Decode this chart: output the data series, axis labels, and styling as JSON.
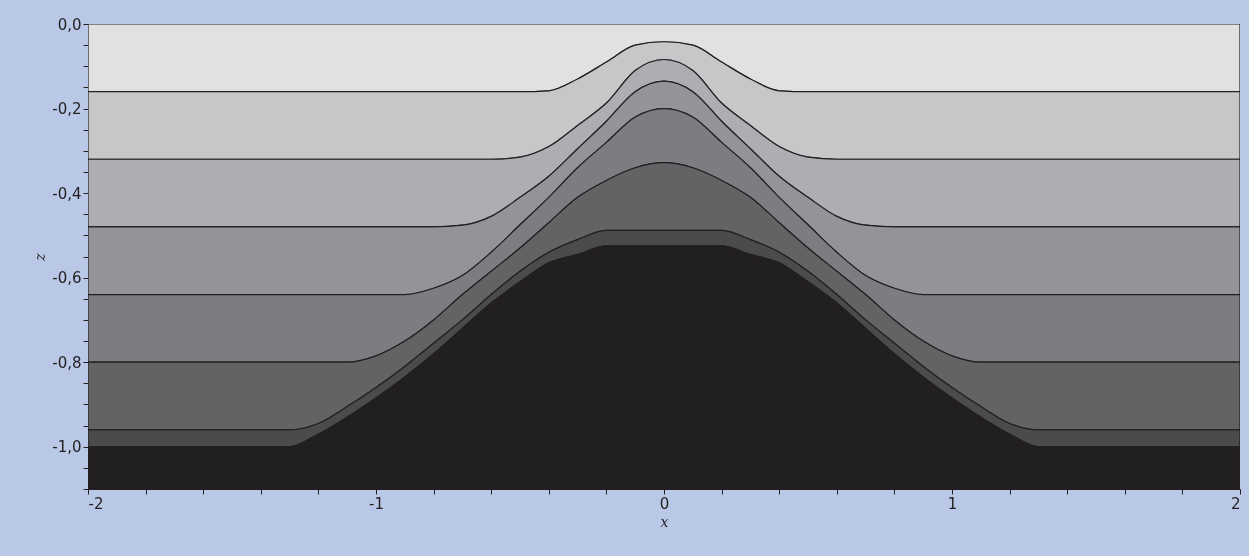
{
  "chart_data": {
    "type": "area",
    "stacked": true,
    "xlabel": "x",
    "ylabel": "z",
    "xlim": [
      -2,
      2
    ],
    "ylim": [
      -1.1,
      0
    ],
    "xticks": [
      -2,
      {
        "value": -1.8,
        "label": null
      },
      {
        "value": -1.6,
        "label": null
      },
      {
        "value": -1.4,
        "label": null
      },
      {
        "value": -1.2,
        "label": null
      },
      -1,
      {
        "value": -0.8,
        "label": null
      },
      {
        "value": -0.6,
        "label": null
      },
      {
        "value": -0.4,
        "label": null
      },
      {
        "value": -0.2,
        "label": null
      },
      0,
      {
        "value": 0.2,
        "label": null
      },
      {
        "value": 0.4,
        "label": null
      },
      {
        "value": 0.6,
        "label": null
      },
      {
        "value": 0.8,
        "label": null
      },
      1,
      {
        "value": 1.2,
        "label": null
      },
      {
        "value": 1.4,
        "label": null
      },
      {
        "value": 1.6,
        "label": null
      },
      {
        "value": 1.8,
        "label": null
      },
      2
    ],
    "yticks": [
      {
        "value": 0,
        "label": "0,0"
      },
      {
        "value": -0.05,
        "label": null
      },
      {
        "value": -0.1,
        "label": null
      },
      {
        "value": -0.15,
        "label": null
      },
      {
        "value": -0.2,
        "label": "-0,2"
      },
      {
        "value": -0.25,
        "label": null
      },
      {
        "value": -0.3,
        "label": null
      },
      {
        "value": -0.35,
        "label": null
      },
      {
        "value": -0.4,
        "label": "-0,4"
      },
      {
        "value": -0.45,
        "label": null
      },
      {
        "value": -0.5,
        "label": null
      },
      {
        "value": -0.55,
        "label": null
      },
      {
        "value": -0.6,
        "label": "-0,6"
      },
      {
        "value": -0.65,
        "label": null
      },
      {
        "value": -0.7,
        "label": null
      },
      {
        "value": -0.75,
        "label": null
      },
      {
        "value": -0.8,
        "label": "-0,8"
      },
      {
        "value": -0.85,
        "label": null
      },
      {
        "value": -0.9,
        "label": null
      },
      {
        "value": -0.95,
        "label": null
      },
      {
        "value": -1,
        "label": "-1,0"
      },
      {
        "value": -1.05,
        "label": null
      },
      {
        "value": -1.1,
        "label": null
      }
    ],
    "grid": false,
    "x": [
      -2,
      -1.3,
      -1.2,
      -1.1,
      -1,
      -0.9,
      -0.8,
      -0.7,
      -0.6,
      -0.5,
      -0.4,
      -0.3,
      -0.2,
      -0.1,
      0,
      0.1,
      0.2,
      0.3,
      0.4,
      0.5,
      0.6,
      0.7,
      0.8,
      0.9,
      1,
      1.1,
      1.2,
      1.3,
      2
    ],
    "series": [
      {
        "color": "#e0e1e3",
        "values": [
          -0.16,
          -0.16,
          -0.16,
          -0.16,
          -0.16,
          -0.16,
          -0.16,
          -0.16,
          -0.16,
          -0.16,
          -0.158,
          -0.13,
          -0.09,
          -0.05,
          -0.042,
          -0.05,
          -0.09,
          -0.13,
          -0.158,
          -0.16,
          -0.16,
          -0.16,
          -0.16,
          -0.16,
          -0.16,
          -0.16,
          -0.16,
          -0.16,
          -0.16
        ]
      },
      {
        "color": "#c6c7c9",
        "values": [
          -0.16,
          -0.16,
          -0.16,
          -0.16,
          -0.16,
          -0.16,
          -0.16,
          -0.16,
          -0.16,
          -0.155,
          -0.132,
          -0.11,
          -0.097,
          -0.06,
          -0.042,
          -0.06,
          -0.097,
          -0.11,
          -0.132,
          -0.155,
          -0.16,
          -0.16,
          -0.16,
          -0.16,
          -0.16,
          -0.16,
          -0.16,
          -0.16,
          -0.16
        ]
      },
      {
        "color": "#adaeb1",
        "values": [
          -0.16,
          -0.16,
          -0.16,
          -0.16,
          -0.16,
          -0.16,
          -0.16,
          -0.156,
          -0.135,
          -0.095,
          -0.07,
          -0.055,
          -0.043,
          -0.05,
          -0.051,
          -0.05,
          -0.043,
          -0.055,
          -0.07,
          -0.095,
          -0.135,
          -0.156,
          -0.16,
          -0.16,
          -0.16,
          -0.16,
          -0.16,
          -0.16,
          -0.16
        ]
      },
      {
        "color": "#939497",
        "values": [
          -0.16,
          -0.16,
          -0.16,
          -0.16,
          -0.16,
          -0.16,
          -0.145,
          -0.119,
          -0.085,
          -0.065,
          -0.05,
          -0.045,
          -0.05,
          -0.06,
          -0.065,
          -0.06,
          -0.05,
          -0.045,
          -0.05,
          -0.065,
          -0.085,
          -0.119,
          -0.145,
          -0.16,
          -0.16,
          -0.16,
          -0.16,
          -0.16,
          -0.16
        ]
      },
      {
        "color": "#7c7d80",
        "values": [
          -0.16,
          -0.16,
          -0.16,
          -0.16,
          -0.145,
          -0.11,
          -0.075,
          -0.045,
          -0.045,
          -0.055,
          -0.06,
          -0.07,
          -0.09,
          -0.12,
          -0.128,
          -0.12,
          -0.09,
          -0.07,
          -0.06,
          -0.055,
          -0.045,
          -0.045,
          -0.075,
          -0.11,
          -0.145,
          -0.16,
          -0.16,
          -0.16,
          -0.16
        ]
      },
      {
        "color": "#636365",
        "values": [
          -0.16,
          -0.16,
          -0.145,
          -0.105,
          -0.075,
          -0.06,
          -0.055,
          -0.06,
          -0.055,
          -0.055,
          -0.07,
          -0.1,
          -0.118,
          -0.148,
          -0.16,
          -0.148,
          -0.118,
          -0.1,
          -0.07,
          -0.055,
          -0.055,
          -0.06,
          -0.055,
          -0.06,
          -0.075,
          -0.105,
          -0.145,
          -0.16,
          -0.16
        ]
      },
      {
        "color": "#4b4b4d",
        "values": [
          -0.04,
          -0.04,
          -0.025,
          -0.025,
          -0.025,
          -0.025,
          -0.025,
          -0.02,
          -0.02,
          -0.025,
          -0.025,
          -0.035,
          -0.037,
          -0.037,
          -0.037,
          -0.037,
          -0.037,
          -0.035,
          -0.025,
          -0.025,
          -0.02,
          -0.02,
          -0.025,
          -0.025,
          -0.025,
          -0.025,
          -0.025,
          -0.04,
          -0.04
        ]
      },
      {
        "color": "#221f20",
        "values": [
          -0.1,
          -0.1,
          -0.13,
          -0.17,
          -0.215,
          -0.265,
          -0.32,
          -0.38,
          -0.44,
          -0.49,
          -0.535,
          -0.555,
          -0.575,
          -0.575,
          -0.575,
          -0.575,
          -0.575,
          -0.555,
          -0.535,
          -0.49,
          -0.44,
          -0.38,
          -0.32,
          -0.265,
          -0.215,
          -0.17,
          -0.13,
          -0.1,
          -0.1
        ]
      }
    ]
  }
}
